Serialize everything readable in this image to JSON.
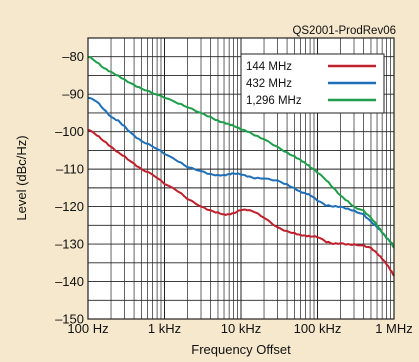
{
  "colors": {
    "background": "#f6e8cd",
    "plot_background": "#ffffff",
    "grid": "#222222"
  },
  "chart_data": {
    "type": "line",
    "title": "",
    "annotation": "QS2001-ProdRev06",
    "xlabel": "Frequency Offset",
    "ylabel": "Level (dBc/Hz)",
    "x_scale": "log",
    "xlim": [
      100,
      1000000
    ],
    "ylim": [
      -150,
      -75
    ],
    "grid": true,
    "legend_position": "top-right",
    "x_ticks": [
      {
        "value": 100,
        "label": "100 Hz"
      },
      {
        "value": 1000,
        "label": "1 kHz"
      },
      {
        "value": 10000,
        "label": "10 kHz"
      },
      {
        "value": 100000,
        "label": "100 kHz"
      },
      {
        "value": 1000000,
        "label": "1 MHz"
      }
    ],
    "y_ticks": [
      {
        "value": -80,
        "label": "–80"
      },
      {
        "value": -90,
        "label": "–90"
      },
      {
        "value": -100,
        "label": "–100"
      },
      {
        "value": -110,
        "label": "–110"
      },
      {
        "value": -120,
        "label": "–120"
      },
      {
        "value": -130,
        "label": "–130"
      },
      {
        "value": -140,
        "label": "–140"
      },
      {
        "value": -150,
        "label": "–150"
      }
    ],
    "series": [
      {
        "name": "144 MHz",
        "color": "#c0202c",
        "x": [
          100,
          130,
          160,
          200,
          250,
          300,
          400,
          500,
          700,
          1000,
          1500,
          2000,
          3000,
          4000,
          5000,
          6000,
          7000,
          8000,
          10000,
          12000,
          15000,
          20000,
          30000,
          40000,
          50000,
          60000,
          70000,
          80000,
          100000,
          130000,
          160000,
          200000,
          250000,
          300000,
          400000,
          500000,
          600000,
          700000,
          800000,
          900000,
          1000000
        ],
        "y": [
          -99.5,
          -101,
          -102.5,
          -104,
          -105.5,
          -106.5,
          -108.5,
          -110,
          -111.5,
          -114,
          -116,
          -118,
          -120,
          -121,
          -121.5,
          -122,
          -122,
          -121.8,
          -121,
          -121,
          -121.5,
          -123,
          -125.5,
          -126.5,
          -127,
          -127.5,
          -127.8,
          -128,
          -128.2,
          -129.5,
          -130,
          -129.8,
          -130,
          -130,
          -130.3,
          -131,
          -132.5,
          -134,
          -135.5,
          -137,
          -138.5
        ]
      },
      {
        "name": "432 MHz",
        "color": "#1f6fb8",
        "x": [
          100,
          130,
          160,
          200,
          250,
          300,
          400,
          500,
          700,
          1000,
          1500,
          2000,
          3000,
          4000,
          5000,
          6000,
          7000,
          8000,
          10000,
          12000,
          15000,
          20000,
          30000,
          40000,
          50000,
          60000,
          70000,
          80000,
          100000,
          130000,
          160000,
          200000,
          250000,
          300000,
          400000,
          500000,
          600000,
          700000,
          800000,
          900000,
          1000000
        ],
        "y": [
          -91,
          -92,
          -94,
          -96,
          -97,
          -98.5,
          -101,
          -102.5,
          -104,
          -106,
          -108,
          -109.5,
          -110.5,
          -111.3,
          -111.5,
          -111.5,
          -111.3,
          -111.2,
          -111.5,
          -112,
          -112.5,
          -112.5,
          -113,
          -114,
          -115,
          -116,
          -116.5,
          -117,
          -118.5,
          -119.8,
          -120,
          -120,
          -120.5,
          -121,
          -122,
          -124,
          -125.5,
          -127,
          -128.5,
          -129.5,
          -130.5
        ]
      },
      {
        "name": "1,296 MHz",
        "color": "#1e9e4a",
        "x": [
          100,
          130,
          160,
          200,
          250,
          300,
          400,
          500,
          700,
          1000,
          1500,
          2000,
          3000,
          4000,
          5000,
          6000,
          7000,
          8000,
          10000,
          12000,
          15000,
          20000,
          30000,
          40000,
          50000,
          60000,
          70000,
          80000,
          100000,
          130000,
          160000,
          200000,
          250000,
          300000,
          400000,
          500000,
          600000,
          700000,
          800000,
          900000,
          1000000
        ],
        "y": [
          -80,
          -81.5,
          -83,
          -84,
          -85,
          -86,
          -87.5,
          -88.5,
          -89.8,
          -91,
          -92.5,
          -93.5,
          -95,
          -96,
          -97,
          -97.5,
          -98,
          -98.5,
          -99.5,
          -100,
          -101,
          -102,
          -104,
          -105.5,
          -106.5,
          -107.5,
          -108.5,
          -109.5,
          -111,
          -113,
          -115,
          -117,
          -118.5,
          -120,
          -121,
          -123,
          -125,
          -127,
          -128.5,
          -129.5,
          -131
        ]
      }
    ]
  }
}
